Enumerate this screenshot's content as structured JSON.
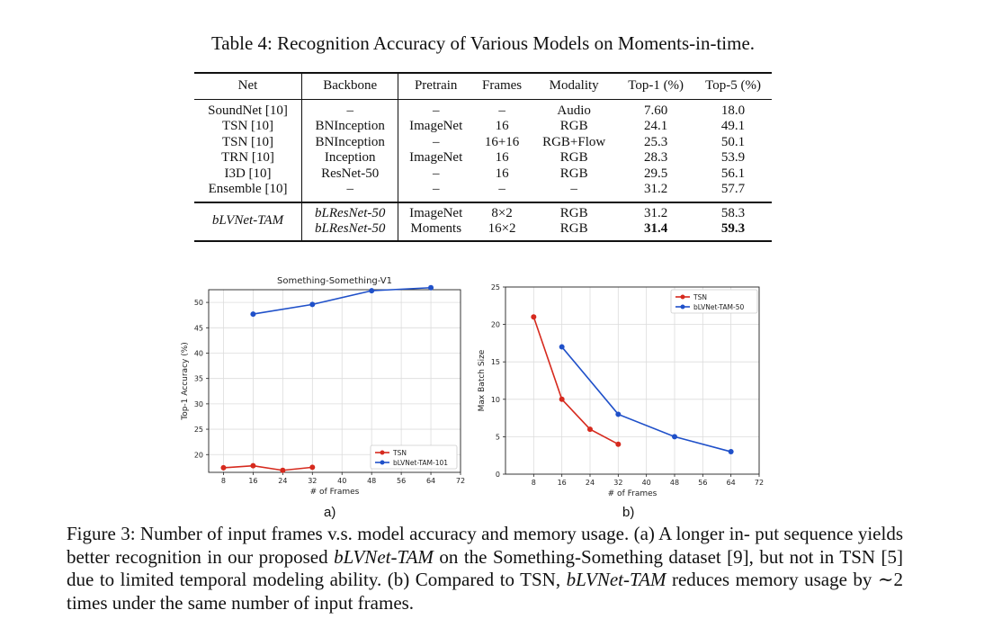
{
  "table": {
    "caption": "Table 4: Recognition Accuracy of Various Models on Moments-in-time.",
    "headers": [
      "Net",
      "Backbone",
      "Pretrain",
      "Frames",
      "Modality",
      "Top-1 (%)",
      "Top-5 (%)"
    ],
    "rows": [
      [
        "SoundNet [10]",
        "–",
        "–",
        "–",
        "Audio",
        "7.60",
        "18.0"
      ],
      [
        "TSN [10]",
        "BNInception",
        "ImageNet",
        "16",
        "RGB",
        "24.1",
        "49.1"
      ],
      [
        "TSN [10]",
        "BNInception",
        "–",
        "16+16",
        "RGB+Flow",
        "25.3",
        "50.1"
      ],
      [
        "TRN [10]",
        "Inception",
        "ImageNet",
        "16",
        "RGB",
        "28.3",
        "53.9"
      ],
      [
        "I3D [10]",
        "ResNet-50",
        "–",
        "16",
        "RGB",
        "29.5",
        "56.1"
      ],
      [
        "Ensemble [10]",
        "–",
        "–",
        "–",
        "–",
        "31.2",
        "57.7"
      ]
    ],
    "ours": {
      "net": "bLVNet-TAM",
      "rows": [
        [
          "bLResNet-50",
          "ImageNet",
          "8×2",
          "RGB",
          "31.2",
          "58.3"
        ],
        [
          "bLResNet-50",
          "Moments",
          "16×2",
          "RGB",
          "31.4",
          "59.3"
        ]
      ]
    }
  },
  "figure": {
    "sub_a": "a)",
    "sub_b": "b)",
    "caption_lines": [
      "Figure 3: Number of input frames v.s.  model accuracy and memory usage.  (a) A longer in-",
      "put sequence yields better recognition in our proposed ",
      "bLVNet-TAM",
      " on the Something-Something",
      "dataset [9], but not in TSN [5] due to limited temporal modeling ability.  (b) Compared to TSN,",
      "bLVNet-TAM",
      " reduces memory usage by ∼2 times under the same number of input frames."
    ]
  },
  "chart_data": [
    {
      "type": "line",
      "title": "Something-Something-V1",
      "xlabel": "# of Frames",
      "ylabel": "Top-1 Accuracy (%)",
      "xlim": [
        4,
        72
      ],
      "ylim": [
        16.5,
        52.5
      ],
      "xticks": [
        8,
        16,
        24,
        32,
        40,
        48,
        56,
        64,
        72
      ],
      "yticks": [
        20,
        25,
        30,
        35,
        40,
        45,
        50
      ],
      "grid": true,
      "legend": "bottom-right",
      "series": [
        {
          "name": "TSN",
          "color": "#d62a1e",
          "x": [
            8,
            16,
            24,
            32
          ],
          "y": [
            17.4,
            17.8,
            16.9,
            17.5
          ]
        },
        {
          "name": "bLVNet-TAM-101",
          "color": "#1f50c9",
          "x": [
            16,
            32,
            48,
            64
          ],
          "y": [
            47.7,
            49.6,
            52.3,
            52.9
          ]
        }
      ]
    },
    {
      "type": "line",
      "title": "",
      "xlabel": "# of Frames",
      "ylabel": "Max Batch Size",
      "xlim": [
        0,
        72
      ],
      "ylim": [
        0,
        25
      ],
      "xticks": [
        8,
        16,
        24,
        32,
        40,
        48,
        56,
        64,
        72
      ],
      "yticks": [
        0,
        5,
        10,
        15,
        20,
        25
      ],
      "grid": true,
      "legend": "top-right",
      "series": [
        {
          "name": "TSN",
          "color": "#d62a1e",
          "x": [
            8,
            16,
            24,
            32
          ],
          "y": [
            21,
            10,
            6,
            4
          ]
        },
        {
          "name": "bLVNet-TAM-50",
          "color": "#1f50c9",
          "x": [
            16,
            32,
            48,
            64
          ],
          "y": [
            17,
            8,
            5,
            3
          ]
        }
      ]
    }
  ]
}
